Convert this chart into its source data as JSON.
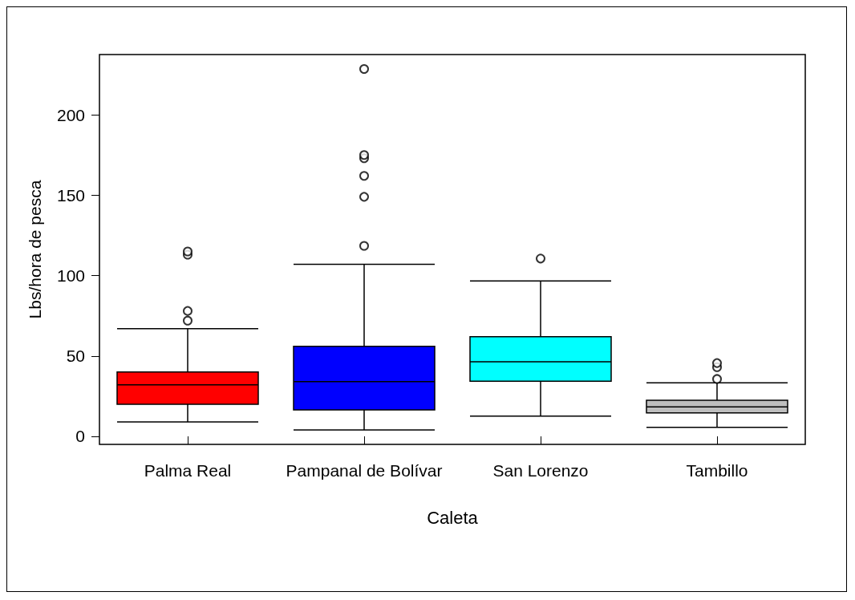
{
  "chart_data": {
    "type": "box",
    "xlabel": "Caleta",
    "ylabel": "Lbs/hora de pesca",
    "categories": [
      "Palma Real",
      "Pampanal de Bolívar",
      "San Lorenzo",
      "Tambillo"
    ],
    "colors": [
      "#ff0000",
      "#0000ff",
      "#00ffff",
      "#bebebe"
    ],
    "boxes": [
      {
        "low": 9,
        "q1": 20,
        "median": 32,
        "q3": 40,
        "high": 67,
        "outliers": [
          72,
          78,
          113,
          115
        ]
      },
      {
        "low": 4,
        "q1": 16.5,
        "median": 34,
        "q3": 56,
        "high": 107,
        "outliers": [
          118.5,
          149,
          162,
          173,
          175,
          228.5
        ]
      },
      {
        "low": 12.6,
        "q1": 34.3,
        "median": 46.4,
        "q3": 62,
        "high": 96.7,
        "outliers": [
          110.6
        ]
      },
      {
        "low": 5.6,
        "q1": 14.6,
        "median": 18.3,
        "q3": 22.4,
        "high": 33.3,
        "outliers": [
          35.7,
          43,
          45.6
        ]
      }
    ],
    "ylim": [
      -5,
      237.5
    ],
    "yticks": [
      0,
      50,
      100,
      150,
      200
    ],
    "grid": false
  }
}
